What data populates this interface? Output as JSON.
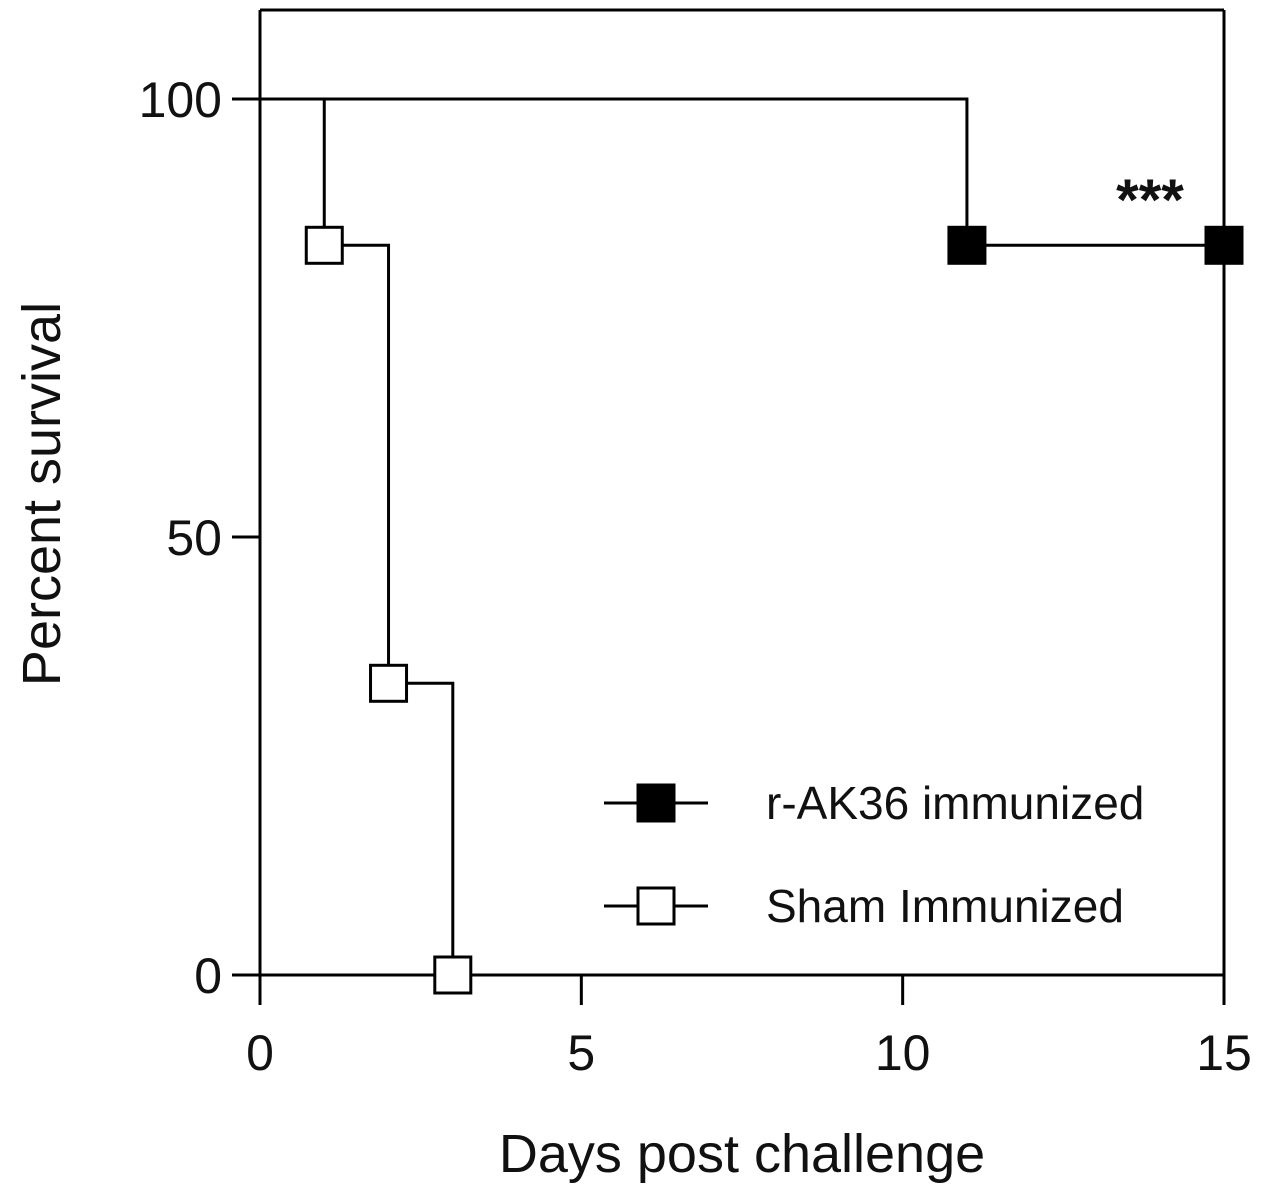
{
  "chart_data": {
    "type": "line",
    "subtype": "kaplan-meier survival (step)",
    "xlabel": "Days post challenge",
    "ylabel": "Percent survival",
    "xlim": [
      0,
      15
    ],
    "ylim": [
      0,
      100
    ],
    "xticks": [
      "0",
      "5",
      "10",
      "15"
    ],
    "yticks": [
      "0",
      "50",
      "100"
    ],
    "grid": false,
    "legend_position": "bottom-right",
    "annotation": "***",
    "series": [
      {
        "name": "r-AK36 immunized",
        "marker": "filled-square",
        "color": "#000000",
        "points": [
          [
            0,
            100
          ],
          [
            11,
            83.3
          ],
          [
            15,
            83.3
          ]
        ]
      },
      {
        "name": "Sham Immunized",
        "marker": "open-square",
        "color": "#000000",
        "points": [
          [
            0,
            100
          ],
          [
            1,
            83.3
          ],
          [
            2,
            33.3
          ],
          [
            3,
            0
          ]
        ]
      }
    ]
  }
}
